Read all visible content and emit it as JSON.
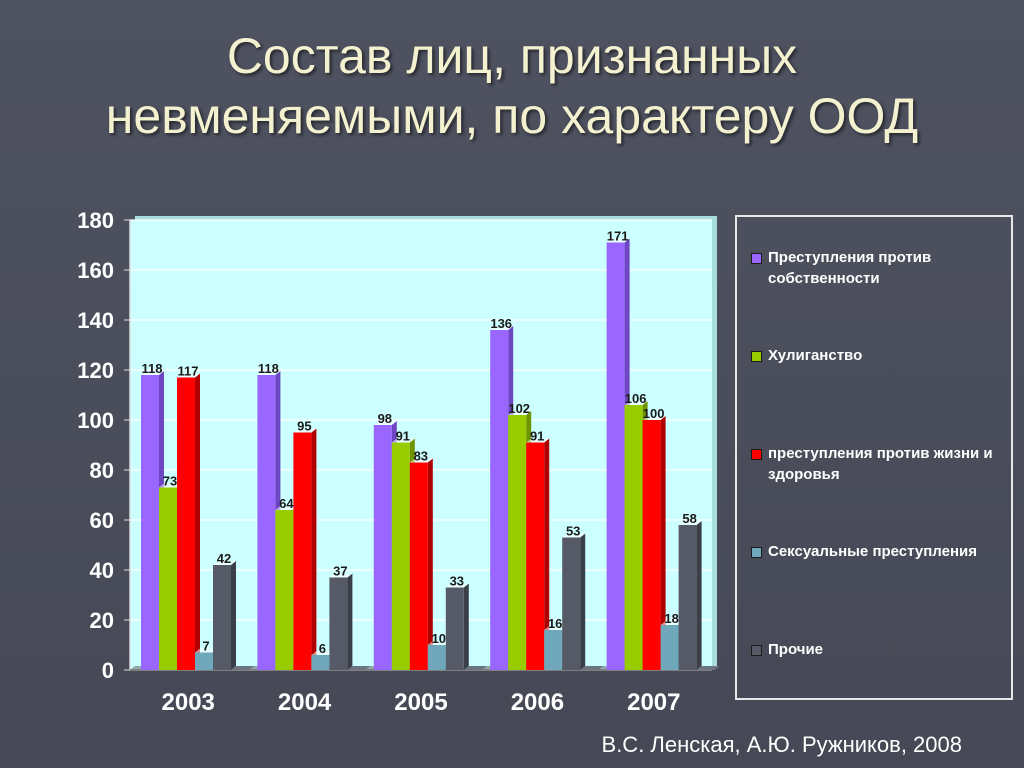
{
  "slide": {
    "title_line1": "Состав лиц, признанных",
    "title_line2": "невменяемыми, по характеру ООД",
    "footer": "В.С. Ленская, А.Ю. Ружников, 2008"
  },
  "chart_data": {
    "type": "bar",
    "categories": [
      "2003",
      "2004",
      "2005",
      "2006",
      "2007"
    ],
    "ylim": [
      0,
      180
    ],
    "yticks": [
      "0",
      "20",
      "40",
      "60",
      "80",
      "100",
      "120",
      "140",
      "160",
      "180"
    ],
    "grid": true,
    "legend_position": "right",
    "series": [
      {
        "name": "Преступления против собственности",
        "color": "#9966ff",
        "side": "#6e46c4",
        "values": [
          118,
          118,
          98,
          136,
          171
        ]
      },
      {
        "name": "Хулиганство",
        "color": "#99cc00",
        "side": "#6e9200",
        "values": [
          73,
          64,
          91,
          102,
          106
        ]
      },
      {
        "name": "преступления против жизни и здоровья",
        "color": "#ff0000",
        "side": "#b00000",
        "values": [
          117,
          95,
          83,
          91,
          100
        ]
      },
      {
        "name": "Сексуальные преступления",
        "color": "#6fa7bb",
        "side": "#4c7686",
        "values": [
          7,
          6,
          10,
          16,
          18
        ]
      },
      {
        "name": "Прочие",
        "color": "#555a66",
        "side": "#3a3e48",
        "values": [
          42,
          37,
          33,
          53,
          58
        ]
      }
    ],
    "colors": {
      "plot_background": "#ccffff",
      "gridline": "#ffffff",
      "baseline": "#808080",
      "tick_text": "#ffffff",
      "data_label_text": "#1a1a1a"
    }
  }
}
